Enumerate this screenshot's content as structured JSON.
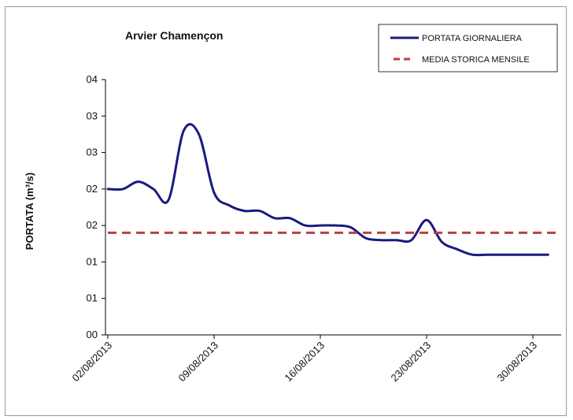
{
  "chart_data": {
    "type": "line",
    "title": "Arvier Chamençon",
    "xlabel": "",
    "ylabel": "PORTATA (m³/s)",
    "ylim": [
      0,
      7
    ],
    "y_tick_labels": [
      "00",
      "01",
      "01",
      "02",
      "02",
      "03",
      "03",
      "04"
    ],
    "x_tick_labels": [
      "02/08/2013",
      "09/08/2013",
      "16/08/2013",
      "23/08/2013",
      "30/08/2013"
    ],
    "x_ticks": [
      1,
      8,
      15,
      22,
      29
    ],
    "x_range": [
      0.8,
      30.5
    ],
    "grid": false,
    "legend_position": "top-right",
    "series": [
      {
        "name": "PORTATA GIORNALIERA",
        "color": "#1a1a80",
        "style": "solid",
        "x": [
          1,
          2,
          3,
          4,
          5,
          6,
          7,
          8,
          9,
          10,
          11,
          12,
          13,
          14,
          15,
          16,
          17,
          18,
          19,
          20,
          21,
          22,
          23,
          24,
          25,
          26,
          27,
          28,
          29,
          30
        ],
        "y": [
          4.0,
          4.0,
          4.2,
          4.0,
          3.7,
          5.6,
          5.5,
          3.9,
          3.55,
          3.4,
          3.4,
          3.2,
          3.2,
          3.0,
          3.0,
          3.0,
          2.95,
          2.65,
          2.6,
          2.6,
          2.6,
          3.15,
          2.55,
          2.35,
          2.2,
          2.2,
          2.2,
          2.2,
          2.2,
          2.2
        ]
      },
      {
        "name": "MEDIA STORICA MENSILE",
        "color": "#b94040",
        "style": "dashed",
        "x": [
          1,
          30.5
        ],
        "y": [
          2.8,
          2.8
        ]
      }
    ]
  }
}
